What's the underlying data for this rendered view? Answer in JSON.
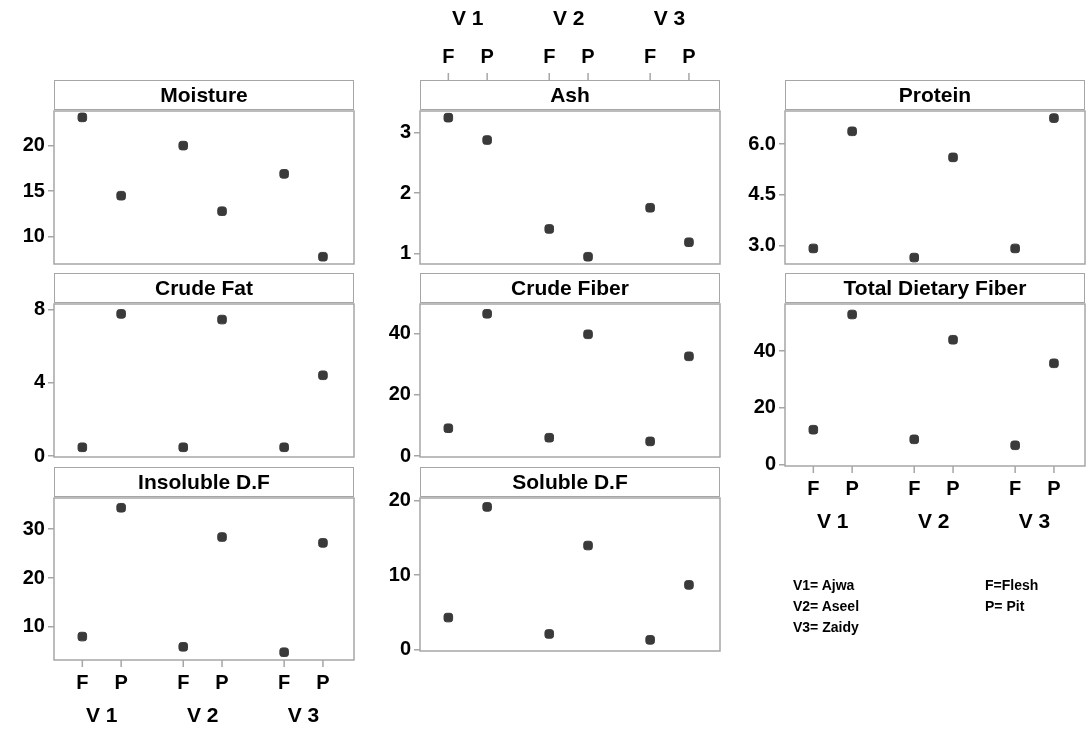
{
  "chart_data": [
    {
      "type": "scatter",
      "title": "Moisture",
      "categories": [
        "F",
        "P",
        "F",
        "P",
        "F",
        "P"
      ],
      "values": [
        23.1,
        14.5,
        20.0,
        12.8,
        16.9,
        7.8
      ],
      "color": "#3a3a3a",
      "marker": "square",
      "ylim": [
        7.0,
        23.8
      ],
      "yticks": [
        10,
        15,
        20
      ],
      "tick_labels": "y"
    },
    {
      "type": "scatter",
      "title": "Ash",
      "categories": [
        "F",
        "P",
        "F",
        "P",
        "F",
        "P"
      ],
      "values": [
        3.25,
        2.88,
        1.41,
        0.95,
        1.76,
        1.19
      ],
      "color": "#3a3a3a",
      "marker": "square",
      "ylim": [
        0.83,
        3.36
      ],
      "yticks": [
        1,
        2,
        3
      ],
      "annotations": [
        "V 1",
        "V 2",
        "V 3"
      ]
    },
    {
      "type": "scatter",
      "title": "Protein",
      "categories": [
        "F",
        "P",
        "F",
        "P",
        "F",
        "P"
      ],
      "values": [
        2.92,
        6.38,
        2.65,
        5.61,
        2.92,
        6.77
      ],
      "color": "#3a3a3a",
      "marker": "square",
      "ylim": [
        2.46,
        6.98
      ],
      "yticks": [
        {
          "value": 3,
          "label": "3.0"
        },
        {
          "value": 4.5,
          "label": "4.5"
        },
        {
          "value": 6,
          "label": "6.0"
        }
      ],
      "tick_labels": "y"
    },
    {
      "type": "scatter",
      "title": "Crude Fat",
      "categories": [
        "F",
        "P",
        "F",
        "P",
        "F",
        "P"
      ],
      "values": [
        0.48,
        7.76,
        0.48,
        7.45,
        0.48,
        4.41
      ],
      "color": "#3a3a3a",
      "marker": "square",
      "ylim": [
        -0.05,
        8.3
      ],
      "yticks": [
        0,
        4,
        8
      ],
      "tick_labels": "y"
    },
    {
      "type": "scatter",
      "title": "Crude Fiber",
      "categories": [
        "F",
        "P",
        "F",
        "P",
        "F",
        "P"
      ],
      "values": [
        9.1,
        46.5,
        6.0,
        39.8,
        4.8,
        32.6
      ],
      "color": "#3a3a3a",
      "marker": "square",
      "ylim": [
        -0.3,
        49.7
      ],
      "yticks": [
        0,
        20,
        40
      ],
      "tick_labels": "y"
    },
    {
      "type": "scatter",
      "title": "Total Dietary Fiber",
      "categories": [
        "F",
        "P",
        "F",
        "P",
        "F",
        "P"
      ],
      "values": [
        12.3,
        52.9,
        8.9,
        44.0,
        6.8,
        35.7
      ],
      "color": "#3a3a3a",
      "marker": "square",
      "ylim": [
        -0.5,
        56.6
      ],
      "yticks": [
        0,
        20,
        40
      ],
      "annotations": [
        "V 1",
        "V 2",
        "V 3"
      ]
    },
    {
      "type": "scatter",
      "title": "Insoluble D.F",
      "categories": [
        "F",
        "P",
        "F",
        "P",
        "F",
        "P"
      ],
      "values": [
        8.0,
        34.4,
        5.9,
        28.4,
        4.8,
        27.2
      ],
      "color": "#3a3a3a",
      "marker": "square",
      "ylim": [
        3.2,
        36.4
      ],
      "yticks": [
        10,
        20,
        30
      ],
      "annotations": [
        "V 1",
        "V 2",
        "V 3"
      ]
    },
    {
      "type": "scatter",
      "title": "Soluble D.F",
      "categories": [
        "F",
        "P",
        "F",
        "P",
        "F",
        "P"
      ],
      "values": [
        4.3,
        19.2,
        2.1,
        14.0,
        1.3,
        8.7
      ],
      "color": "#3a3a3a",
      "marker": "square",
      "ylim": [
        -0.2,
        20.4
      ],
      "yticks": [
        0,
        10,
        20
      ],
      "tick_labels": "y"
    },
    {
      "type": "other",
      "annotations": [
        "V1= Ajwa",
        "V2= Aseel",
        "V3= Zaidy",
        "F=Flesh",
        "P= Pit"
      ]
    }
  ]
}
